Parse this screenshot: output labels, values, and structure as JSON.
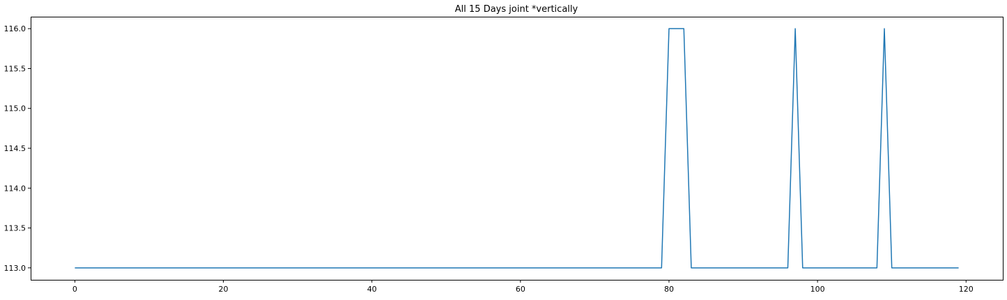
{
  "chart_data": {
    "type": "line",
    "title": "All 15 Days joint *vertically",
    "xlabel": "",
    "ylabel": "",
    "xlim": [
      -5.95,
      124.95
    ],
    "ylim": [
      112.85,
      116.15
    ],
    "xticks": [
      0,
      20,
      40,
      60,
      80,
      100,
      120
    ],
    "yticks": [
      113.0,
      113.5,
      114.0,
      114.5,
      115.0,
      115.5,
      116.0
    ],
    "ytick_labels": [
      "113.0",
      "113.5",
      "114.0",
      "114.5",
      "115.0",
      "115.5",
      "116.0"
    ],
    "xtick_labels": [
      "0",
      "20",
      "40",
      "60",
      "80",
      "100",
      "120"
    ],
    "grid": false,
    "legend": "none",
    "series": [
      {
        "color": "#1f77b4",
        "x": [
          0,
          79,
          80,
          82,
          83,
          96,
          97,
          98,
          108,
          109,
          110,
          119
        ],
        "y": [
          113,
          113,
          116,
          116,
          113,
          113,
          116,
          113,
          113,
          116,
          113,
          113
        ]
      }
    ]
  }
}
